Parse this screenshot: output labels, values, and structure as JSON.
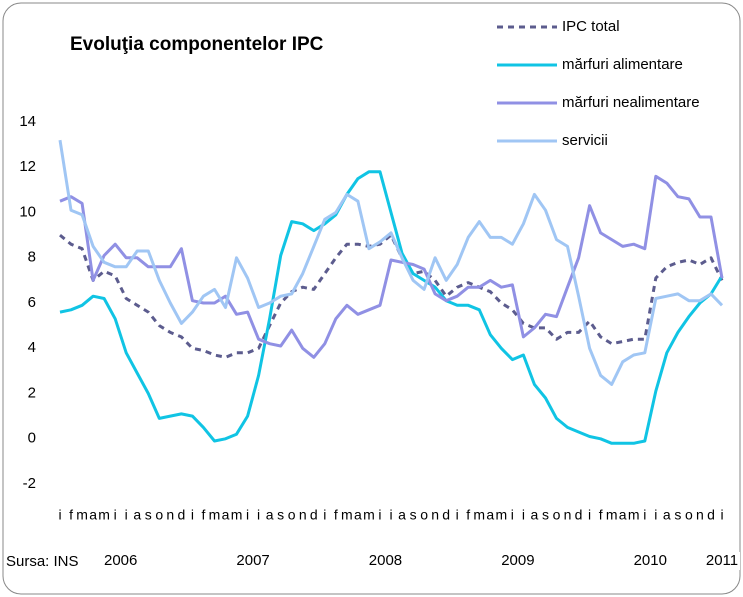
{
  "chart_data": {
    "type": "line",
    "title": "Evoluţia componentelor IPC",
    "source": "Sursa: INS",
    "categories": [
      "i",
      "f",
      "m",
      "a",
      "m",
      "i",
      "i",
      "a",
      "s",
      "o",
      "n",
      "d",
      "i",
      "f",
      "m",
      "a",
      "m",
      "i",
      "i",
      "a",
      "s",
      "o",
      "n",
      "d",
      "i",
      "f",
      "m",
      "a",
      "m",
      "i",
      "i",
      "a",
      "s",
      "o",
      "n",
      "d",
      "i",
      "f",
      "m",
      "a",
      "m",
      "i",
      "i",
      "a",
      "s",
      "o",
      "n",
      "d",
      "i",
      "f",
      "m",
      "a",
      "m",
      "i",
      "i",
      "a",
      "s",
      "o",
      "n",
      "d",
      "i"
    ],
    "years": [
      "2006",
      "2007",
      "2008",
      "2009",
      "2010",
      "2011"
    ],
    "ylim": [
      -2,
      14
    ],
    "yticks": [
      -2,
      0,
      2,
      4,
      6,
      8,
      10,
      12,
      14
    ],
    "grid": false,
    "legend": "top-right",
    "series": [
      {
        "name": "IPC total",
        "color": "#5c5c8e",
        "dash": true,
        "values": [
          9.0,
          8.6,
          8.4,
          7.0,
          7.4,
          7.2,
          6.2,
          5.9,
          5.6,
          5.0,
          4.7,
          4.5,
          4.0,
          3.9,
          3.7,
          3.6,
          3.8,
          3.8,
          4.0,
          5.0,
          6.0,
          6.5,
          6.7,
          6.6,
          7.3,
          8.0,
          8.6,
          8.6,
          8.5,
          8.6,
          9.0,
          8.0,
          7.3,
          7.4,
          7.0,
          6.3,
          6.7,
          6.9,
          6.7,
          6.5,
          6.0,
          5.7,
          5.1,
          4.9,
          4.9,
          4.4,
          4.7,
          4.7,
          5.2,
          4.5,
          4.2,
          4.3,
          4.4,
          4.4,
          7.1,
          7.6,
          7.8,
          7.9,
          7.7,
          8.0,
          7.0
        ]
      },
      {
        "name": "mărfuri alimentare",
        "color": "#10c4e4",
        "dash": false,
        "values": [
          5.6,
          5.7,
          5.9,
          6.3,
          6.2,
          5.3,
          3.8,
          2.9,
          2.0,
          0.9,
          1.0,
          1.1,
          1.0,
          0.5,
          -0.1,
          0.0,
          0.2,
          1.0,
          2.8,
          5.3,
          8.1,
          9.6,
          9.5,
          9.2,
          9.5,
          9.9,
          10.8,
          11.5,
          11.8,
          11.8,
          10.0,
          8.2,
          7.3,
          7.0,
          6.7,
          6.1,
          5.9,
          5.9,
          5.7,
          4.6,
          4.0,
          3.5,
          3.7,
          2.4,
          1.8,
          0.9,
          0.5,
          0.3,
          0.1,
          0.0,
          -0.2,
          -0.2,
          -0.2,
          -0.1,
          2.1,
          3.8,
          4.7,
          5.4,
          6.0,
          6.4,
          7.2
        ]
      },
      {
        "name": "mărfuri nealimentare",
        "color": "#9090e4",
        "dash": false,
        "values": [
          10.5,
          10.7,
          10.4,
          7.0,
          8.1,
          8.6,
          8.0,
          8.0,
          7.6,
          7.6,
          7.6,
          8.4,
          6.1,
          6.0,
          6.0,
          6.3,
          5.5,
          5.6,
          4.4,
          4.2,
          4.1,
          4.8,
          4.0,
          3.6,
          4.2,
          5.3,
          5.9,
          5.5,
          5.7,
          5.9,
          7.9,
          7.8,
          7.7,
          7.5,
          6.4,
          6.1,
          6.3,
          6.7,
          6.7,
          7.0,
          6.7,
          6.8,
          4.5,
          4.9,
          5.5,
          5.4,
          6.7,
          8.0,
          10.3,
          9.1,
          8.8,
          8.5,
          8.6,
          8.4,
          11.6,
          11.3,
          10.7,
          10.6,
          9.8,
          9.8,
          7.1
        ]
      },
      {
        "name": "servicii",
        "color": "#a0c6f4",
        "dash": false,
        "values": [
          13.2,
          10.1,
          9.9,
          8.5,
          7.8,
          7.6,
          7.6,
          8.3,
          8.3,
          7.0,
          6.0,
          5.1,
          5.6,
          6.3,
          6.6,
          5.8,
          8.0,
          7.1,
          5.8,
          6.0,
          6.3,
          6.4,
          7.3,
          8.5,
          9.7,
          10.0,
          10.8,
          10.5,
          8.4,
          8.7,
          9.1,
          8.0,
          7.0,
          6.6,
          8.0,
          7.0,
          7.7,
          8.9,
          9.6,
          8.9,
          8.9,
          8.6,
          9.5,
          10.8,
          10.1,
          8.8,
          8.5,
          6.3,
          4.0,
          2.8,
          2.4,
          3.4,
          3.7,
          3.8,
          6.2,
          6.3,
          6.4,
          6.1,
          6.1,
          6.4,
          5.9
        ]
      }
    ]
  }
}
